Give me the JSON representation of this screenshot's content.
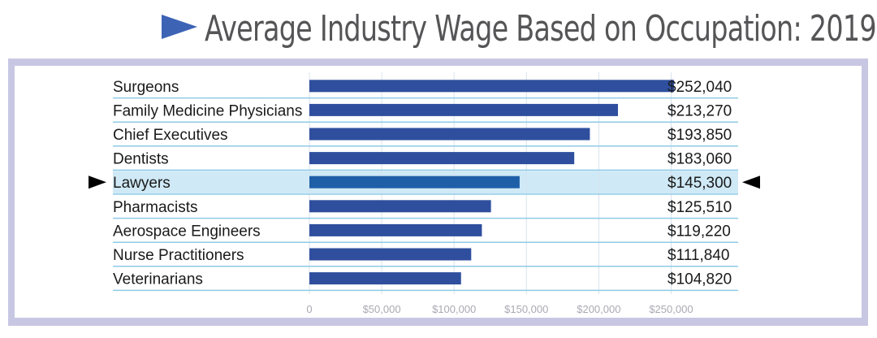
{
  "title": "Average Industry Wage Based on Occupation: 2019",
  "colors": {
    "bar": "#2f4f9e",
    "bar_highlight": "#1f5fa8",
    "highlight_band": "#cfe9f6",
    "row_line": "#8ecbe6",
    "gridline": "#d8e3ec",
    "frame": "#c8c7e3",
    "title_arrow": "#3d63b5",
    "text": "#1a1a1a",
    "tick_text": "#a9a9b3"
  },
  "chart_data": {
    "type": "bar",
    "orientation": "horizontal",
    "title": "Average Industry Wage Based on Occupation: 2019",
    "categories": [
      "Surgeons",
      "Family Medicine Physicians",
      "Chief Executives",
      "Dentists",
      "Lawyers",
      "Pharmacists",
      "Aerospace Engineers",
      "Nurse Practitioners",
      "Veterinarians"
    ],
    "values": [
      252040,
      213270,
      193850,
      183060,
      145300,
      125510,
      119220,
      111840,
      104820
    ],
    "value_labels": [
      "$252,040",
      "$213,270",
      "$193,850",
      "$183,060",
      "$145,300",
      "$125,510",
      "$119,220",
      "$111,840",
      "$104,820"
    ],
    "highlighted_category": "Lawyers",
    "xlim": [
      0,
      275000
    ],
    "xticks": [
      0,
      50000,
      100000,
      150000,
      200000,
      250000
    ],
    "xtick_labels": [
      "0",
      "$50,000",
      "$100,000",
      "$150,000",
      "$200,000",
      "$250,000"
    ],
    "xlabel": "",
    "ylabel": "",
    "grid": true
  }
}
